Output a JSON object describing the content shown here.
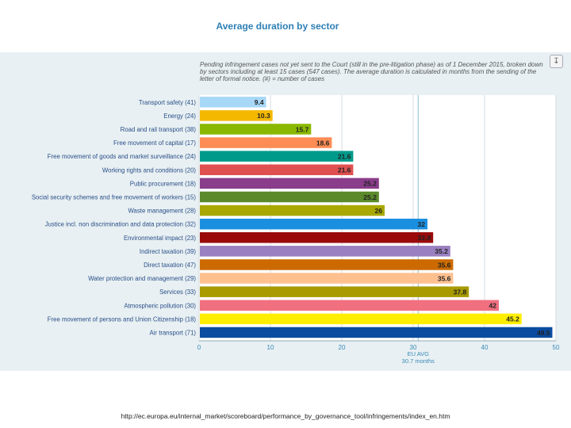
{
  "title": "Average duration by sector",
  "note": "Pending infringement cases not yet sent to the Court (still in the pre-litigation phase) as of 1 December 2015, broken down by sectors including at least 15 cases (547 cases). The average duration is calculated in months from the sending of the letter of formal notice. (#) = number of cases",
  "download_icon": "download-icon",
  "source_url": "http://ec.europa.eu/internal_market/scoreboard/performance_by_governance_tool/infringements/index_en.htm",
  "chart_data": {
    "type": "bar",
    "orientation": "horizontal",
    "title": "Average duration by sector",
    "xlabel": "",
    "ylabel": "",
    "xlim": [
      0,
      50
    ],
    "xticks": [
      0,
      10,
      20,
      30,
      40,
      50
    ],
    "grid": true,
    "categories": [
      "Transport safety (41)",
      "Energy (24)",
      "Road and rail transport (38)",
      "Free movement of capital (17)",
      "Free movement of goods and market surveillance (24)",
      "Working rights and conditions (20)",
      "Public procurement (18)",
      "Social security schemes and free movement of workers (15)",
      "Waste management (28)",
      "Justice incl. non discrimination and data protection (32)",
      "Environmental impact (23)",
      "Indirect taxation (39)",
      "Direct taxation (47)",
      "Water protection and management (29)",
      "Services (33)",
      "Atmospheric pollution (30)",
      "Free movement of persons and Union Citizenship (18)",
      "Air transport (71)"
    ],
    "values": [
      9.4,
      10.3,
      15.7,
      18.6,
      21.6,
      21.6,
      25.2,
      25.2,
      26,
      32,
      32.8,
      35.2,
      35.6,
      35.6,
      37.8,
      42,
      45.2,
      49.5
    ],
    "colors": [
      "#a8d8f8",
      "#f5b800",
      "#8ab800",
      "#ff8c55",
      "#009a8a",
      "#e05050",
      "#8a3d8a",
      "#5a8a2a",
      "#a8a800",
      "#1a8fe0",
      "#9a0a0a",
      "#9a80c0",
      "#cc6a00",
      "#ffc090",
      "#a89a00",
      "#f07080",
      "#ffee00",
      "#0a4ca0"
    ],
    "reference_line": {
      "value": 30.7,
      "label_line1": "EU AVG",
      "label_line2": "30.7 months"
    }
  }
}
